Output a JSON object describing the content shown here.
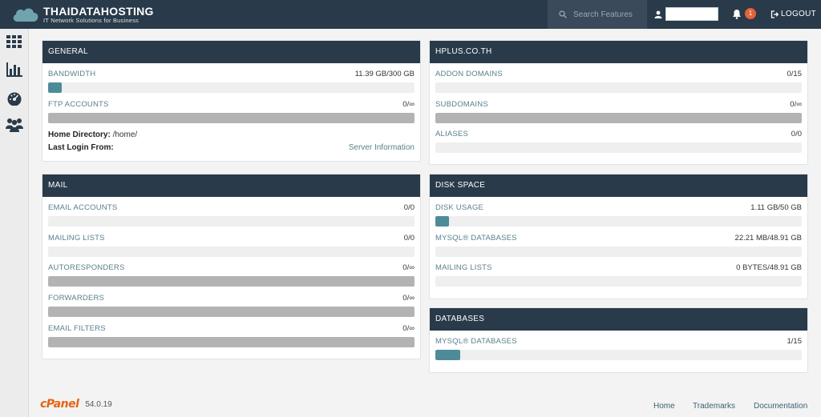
{
  "brand": {
    "title": "THAIDATAHOSTING",
    "subtitle": "IT Network Solutions for Business"
  },
  "header": {
    "search_placeholder": "Search Features",
    "notification_count": "1",
    "logout_label": "LOGOUT"
  },
  "sidebar": {
    "items": [
      {
        "icon": "grid-icon"
      },
      {
        "icon": "bar-chart-icon"
      },
      {
        "icon": "gauge-icon"
      },
      {
        "icon": "users-icon"
      }
    ]
  },
  "general": {
    "title": "GENERAL",
    "bandwidth_label": "BANDWIDTH",
    "bandwidth_value": "11.39 GB/300 GB",
    "bandwidth_fraction": 0.038,
    "ftp_label": "FTP ACCOUNTS",
    "ftp_value": "0/∞",
    "home_dir_key": "Home Directory:",
    "home_dir_value": "/home/",
    "last_login_key": "Last Login From:",
    "server_info_link": "Server Information"
  },
  "domain": {
    "title": "HPLUS.CO.TH",
    "addon_label": "ADDON DOMAINS",
    "addon_value": "0/15",
    "sub_label": "SUBDOMAINS",
    "sub_value": "0/∞",
    "aliases_label": "ALIASES",
    "aliases_value": "0/0"
  },
  "mail": {
    "title": "MAIL",
    "email_accounts_label": "EMAIL ACCOUNTS",
    "email_accounts_value": "0/0",
    "mailing_lists_label": "MAILING LISTS",
    "mailing_lists_value": "0/0",
    "autoresponders_label": "AUTORESPONDERS",
    "autoresponders_value": "0/∞",
    "forwarders_label": "FORWARDERS",
    "forwarders_value": "0/∞",
    "email_filters_label": "EMAIL FILTERS",
    "email_filters_value": "0/∞"
  },
  "disk": {
    "title": "DISK SPACE",
    "disk_usage_label": "DISK USAGE",
    "disk_usage_value": "1.11 GB/50 GB",
    "disk_usage_fraction": 0.022,
    "mysql_label": "MYSQL® DATABASES",
    "mysql_value": "22.21 MB/48.91 GB",
    "mailing_label": "MAILING LISTS",
    "mailing_value": "0 BYTES/48.91 GB"
  },
  "databases": {
    "title": "DATABASES",
    "mysql_label": "MYSQL® DATABASES",
    "mysql_value": "1/15",
    "mysql_fraction": 0.067
  },
  "footer": {
    "logo": "cPanel",
    "version": "54.0.19",
    "home_link": "Home",
    "trademarks_link": "Trademarks",
    "documentation_link": "Documentation"
  },
  "colors": {
    "header_bg": "#293a4a",
    "accent": "#4e8b98",
    "badge": "#e3623a",
    "cpanel_orange": "#e36414"
  }
}
